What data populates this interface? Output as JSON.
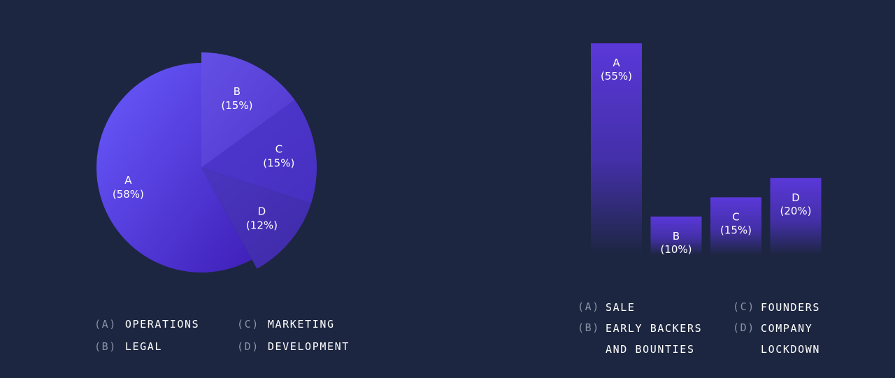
{
  "colors": {
    "background": "#1c2640",
    "pie_gradient": [
      "#6a5cff",
      "#3f1fb8"
    ],
    "bar_gradient_top": "#5a38d9",
    "bar_gradient_bottom": "#1c2640"
  },
  "chart_data": [
    {
      "type": "pie",
      "title": "",
      "slices": [
        {
          "label": "A",
          "percent_label": "(58%)",
          "value": 58,
          "color": "#5a48ea",
          "exploded": false
        },
        {
          "label": "B",
          "percent_label": "(15%)",
          "value": 15,
          "color": "#5b45dc",
          "exploded": true
        },
        {
          "label": "C",
          "percent_label": "(15%)",
          "value": 15,
          "color": "#4a33c6",
          "exploded": true
        },
        {
          "label": "D",
          "percent_label": "(12%)",
          "value": 12,
          "color": "#4530b4",
          "exploded": true
        }
      ],
      "legend": [
        {
          "key": "(A)",
          "text": "OPERATIONS"
        },
        {
          "key": "(B)",
          "text": "LEGAL"
        },
        {
          "key": "(C)",
          "text": "MARKETING"
        },
        {
          "key": "(D)",
          "text": "DEVELOPMENT"
        }
      ]
    },
    {
      "type": "bar",
      "title": "",
      "categories": [
        "A",
        "B",
        "C",
        "D"
      ],
      "values": [
        55,
        10,
        15,
        20
      ],
      "value_labels": [
        "(55%)",
        "(10%)",
        "(15%)",
        "(20%)"
      ],
      "ylim": [
        0,
        55
      ],
      "grid": false,
      "legend": [
        {
          "key": "(A)",
          "lines": [
            "SALE"
          ]
        },
        {
          "key": "(B)",
          "lines": [
            "EARLY BACKERS",
            "AND BOUNTIES"
          ]
        },
        {
          "key": "(C)",
          "lines": [
            "FOUNDERS"
          ]
        },
        {
          "key": "(D)",
          "lines": [
            "COMPANY",
            "LOCKDOWN"
          ]
        }
      ]
    }
  ]
}
